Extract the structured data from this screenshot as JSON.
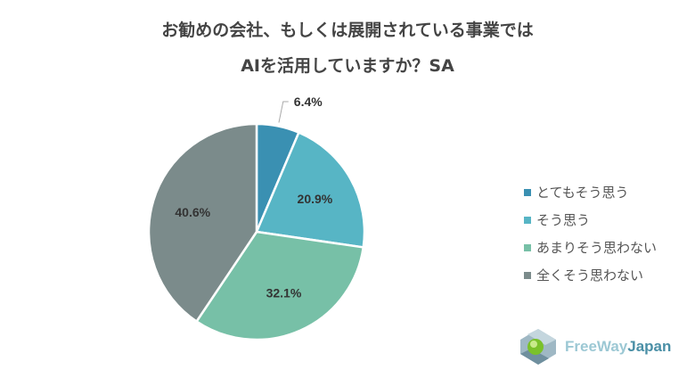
{
  "title_lines": [
    "お勧めの会社、もしくは展開されている事業では",
    "AIを活用していますか？SA"
  ],
  "chart_data": {
    "type": "pie",
    "title": "お勧めの会社、もしくは展開されている事業ではAIを活用していますか？SA",
    "categories": [
      "とてもそう思う",
      "そう思う",
      "あまりそう思わない",
      "全くそう思わない"
    ],
    "values": [
      6.4,
      20.9,
      32.1,
      40.6
    ],
    "labels": [
      "6.4%",
      "20.9%",
      "32.1%",
      "40.6%"
    ],
    "colors": [
      "#3a90b2",
      "#57b5c5",
      "#77c0a7",
      "#7b8b8b"
    ],
    "legend_position": "right",
    "start": "top",
    "direction": "clockwise"
  },
  "logo": {
    "text_light": "FreeWay",
    "text_dark": "Japan"
  }
}
